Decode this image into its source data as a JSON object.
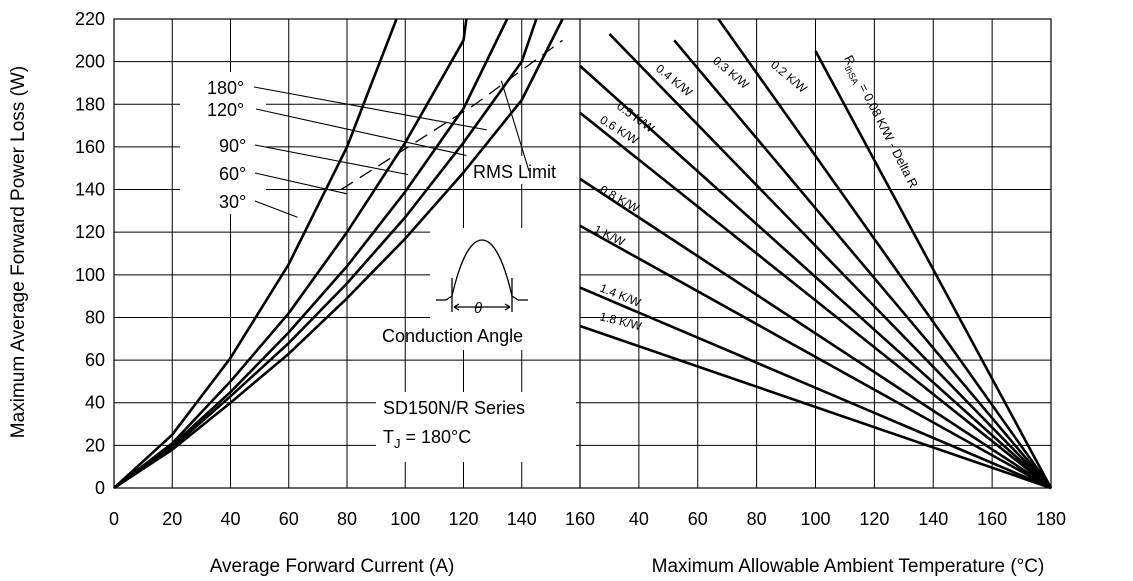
{
  "chart_data": {
    "type": "line",
    "ylabel": "Maximum Average Forward Power Loss (W)",
    "ylim": [
      0,
      220
    ],
    "yticks": [
      0,
      20,
      40,
      60,
      80,
      100,
      120,
      140,
      160,
      180,
      200,
      220
    ],
    "grid": true,
    "panels": [
      {
        "name": "current",
        "xlabel": "Average Forward Current (A)",
        "xlim": [
          0,
          160
        ],
        "xticks": [
          0,
          20,
          40,
          60,
          80,
          100,
          120,
          140,
          160
        ],
        "series": [
          {
            "name": "30°",
            "x": [
              0,
              20,
              40,
              60,
              80,
              100,
              120,
              140,
              154
            ],
            "y": [
              0,
              18,
              40,
              63,
              89,
              117,
              148,
              182,
              220
            ]
          },
          {
            "name": "60°",
            "x": [
              0,
              20,
              40,
              60,
              80,
              100,
              120,
              140,
              145
            ],
            "y": [
              0,
              19,
              43,
              68,
              96,
              127,
              162,
              200,
              220
            ]
          },
          {
            "name": "90°",
            "x": [
              0,
              20,
              40,
              60,
              80,
              100,
              120,
              135
            ],
            "y": [
              0,
              20,
              45,
              73,
              104,
              139,
              178,
              220
            ]
          },
          {
            "name": "120°",
            "x": [
              0,
              20,
              40,
              60,
              80,
              100,
              120,
              121
            ],
            "y": [
              0,
              21,
              50,
              82,
              120,
              162,
              210,
              220
            ]
          },
          {
            "name": "180°",
            "x": [
              0,
              20,
              40,
              60,
              80,
              97
            ],
            "y": [
              0,
              25,
              61,
              105,
              160,
              220
            ]
          },
          {
            "name": "RMS Limit",
            "x": [
              78,
              101,
              124,
              144,
              154
            ],
            "y": [
              140,
              160,
              180,
              200,
              210
            ]
          }
        ]
      },
      {
        "name": "temperature",
        "xlabel": "Maximum Allowable Ambient Temperature (°C)",
        "xlim": [
          20,
          180
        ],
        "xticks": [
          40,
          60,
          80,
          100,
          120,
          140,
          160,
          180
        ],
        "xtick_start_label": "160",
        "series": [
          {
            "name": "RthSA = 0.08 K/W - Delta R",
            "x": [
              100,
              180
            ],
            "y": [
              205,
              0
            ]
          },
          {
            "name": "0.2 K/W",
            "x": [
              67,
              180
            ],
            "y": [
              220,
              0
            ]
          },
          {
            "name": "0.3 K/W",
            "x": [
              52,
              180
            ],
            "y": [
              210,
              0
            ]
          },
          {
            "name": "0.4 K/W",
            "x": [
              30,
              180
            ],
            "y": [
              213,
              0
            ]
          },
          {
            "name": "0.5 K/W",
            "x": [
              20,
              180
            ],
            "y": [
              198,
              0
            ]
          },
          {
            "name": "0.6 K/W",
            "x": [
              20,
              180
            ],
            "y": [
              176,
              0
            ]
          },
          {
            "name": "0.8 K/W",
            "x": [
              20,
              180
            ],
            "y": [
              145,
              0
            ]
          },
          {
            "name": "1 K/W",
            "x": [
              20,
              180
            ],
            "y": [
              123,
              0
            ]
          },
          {
            "name": "1.4 K/W",
            "x": [
              20,
              180
            ],
            "y": [
              94,
              0
            ]
          },
          {
            "name": "1.8 K/W",
            "x": [
              20,
              180
            ],
            "y": [
              76,
              0
            ]
          }
        ]
      }
    ],
    "annotations": {
      "angles": [
        "180°",
        "120°",
        "90°",
        "60°",
        "30°"
      ],
      "rms_limit": "RMS Limit",
      "conduction_angle": "Conduction Angle",
      "theta": "θ",
      "series_name": "SD150N/R Series",
      "tj_prefix": "T",
      "tj_sub": "J",
      "tj_value": " = 180°C",
      "rth_prefix": "R",
      "rth_sub": "thSA",
      "rth_value": " = 0.08 K/W - Delta R",
      "resistance_labels": [
        "0.2 K/W",
        "0.3 K/W",
        "0.4 K/W",
        "0.5 K/W",
        "0.6 K/W",
        "0.8 K/W",
        "1 K/W",
        "1.4 K/W",
        "1.8 K/W"
      ]
    }
  }
}
